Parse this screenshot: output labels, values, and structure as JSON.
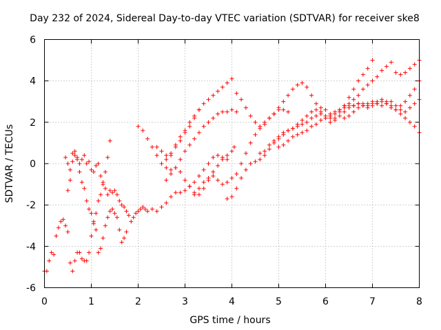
{
  "chart_data": {
    "type": "scatter",
    "title": "Day 232 of 2024, Sidereal Day-to-day VTEC variation (SDTVAR) for receiver ske8",
    "xlabel": "GPS time / hours",
    "ylabel": "SDTVAR / TECUs",
    "xlim": [
      0,
      8
    ],
    "ylim": [
      -6,
      6
    ],
    "xticks": [
      "0",
      "1",
      "2",
      "3",
      "4",
      "5",
      "6",
      "7",
      "8"
    ],
    "yticks": [
      "-6",
      "-4",
      "-2",
      "0",
      "2",
      "4",
      "6"
    ],
    "grid": true,
    "marker": "plus",
    "color": "#ff0000",
    "series": [
      {
        "x": [
          0.0,
          0.05,
          0.1,
          0.15,
          0.2,
          0.25,
          0.3,
          0.35,
          0.4,
          0.45,
          0.5,
          0.55,
          0.6,
          0.65,
          0.7,
          0.75,
          0.8,
          0.85,
          0.9,
          0.95,
          1.0,
          1.05,
          1.1,
          1.15,
          1.2,
          1.25,
          1.3,
          1.35,
          1.4
        ],
        "y": [
          -5.2,
          -5.2,
          -4.7,
          -4.3,
          -4.4,
          -3.5,
          -3.1,
          -2.8,
          -2.7,
          -3.0,
          -3.3,
          -4.8,
          -5.2,
          -4.7,
          -4.3,
          -4.3,
          -4.6,
          -4.7,
          -4.7,
          -4.3,
          -3.5,
          -2.9,
          -2.4,
          -1.8,
          -1.5,
          -1.0,
          -0.4,
          0.3,
          1.1
        ]
      },
      {
        "x": [
          0.45,
          0.5,
          0.55,
          0.6,
          0.65,
          0.7,
          0.75,
          0.8,
          0.85,
          0.9,
          0.95,
          1.0,
          1.05,
          1.1,
          1.15,
          1.2,
          1.25,
          1.3,
          1.35,
          1.4,
          1.45,
          1.5,
          1.55,
          1.6,
          1.65,
          1.7,
          1.75
        ],
        "y": [
          0.3,
          0.0,
          -0.3,
          0.5,
          0.6,
          0.2,
          -0.4,
          -0.9,
          -1.2,
          -1.8,
          -2.2,
          -2.4,
          -2.8,
          -3.2,
          -4.3,
          -4.1,
          -3.6,
          -3.0,
          -2.6,
          -2.3,
          -2.2,
          -2.4,
          -2.6,
          -3.2,
          -3.8,
          -3.6,
          -3.3
        ]
      },
      {
        "x": [
          0.5,
          0.55,
          0.6,
          0.65,
          0.7,
          0.75,
          0.8,
          0.85,
          0.9,
          0.95,
          1.0,
          1.05,
          1.1,
          1.15,
          1.2,
          1.25,
          1.3,
          1.35,
          1.4,
          1.45,
          1.5,
          1.55,
          1.6,
          1.65,
          1.7,
          1.75,
          1.8,
          1.85,
          1.9,
          1.95,
          2.0,
          2.05,
          2.1,
          2.15,
          2.2,
          2.3,
          2.4,
          2.5,
          2.6,
          2.7,
          2.8,
          2.9,
          3.0,
          3.1,
          3.2,
          3.3,
          3.4,
          3.5,
          3.6,
          3.7,
          3.8,
          3.9
        ],
        "y": [
          -1.3,
          -0.8,
          0.1,
          0.4,
          0.3,
          0.0,
          0.2,
          0.4,
          0.0,
          0.1,
          -0.3,
          -0.4,
          -0.1,
          0.0,
          -0.6,
          -0.9,
          -1.2,
          -1.5,
          -1.3,
          -1.4,
          -1.3,
          -1.5,
          -1.8,
          -2.0,
          -2.1,
          -2.3,
          -2.5,
          -2.8,
          -2.6,
          -2.4,
          -2.3,
          -2.2,
          -2.1,
          -2.2,
          -2.3,
          -2.2,
          -2.3,
          -2.1,
          -1.9,
          -1.6,
          -1.4,
          -1.4,
          -1.3,
          -1.1,
          -0.9,
          -0.6,
          -0.3,
          0.0,
          0.3,
          0.4,
          0.3,
          0.2
        ]
      },
      {
        "x": [
          2.0,
          2.1,
          2.2,
          2.3,
          2.4,
          2.5,
          2.6,
          2.7,
          2.8,
          2.9,
          3.0,
          3.1,
          3.2,
          3.3,
          3.4,
          3.5,
          3.6,
          3.7,
          3.8,
          3.9,
          4.0,
          4.05
        ],
        "y": [
          1.8,
          1.6,
          1.2,
          0.8,
          0.4,
          0.0,
          -0.2,
          -0.3,
          -0.2,
          -0.4,
          -0.8,
          -1.1,
          -1.4,
          -1.5,
          -1.2,
          -0.8,
          -0.4,
          -0.1,
          0.2,
          0.4,
          0.6,
          0.8
        ]
      },
      {
        "x": [
          2.4,
          2.5,
          2.6,
          2.7,
          2.8,
          2.9,
          3.0,
          3.1,
          3.2,
          3.3,
          3.4,
          3.5,
          3.6,
          3.7,
          3.8,
          3.9,
          4.0,
          4.1,
          4.2,
          4.3,
          4.4,
          4.5,
          4.6,
          4.7,
          4.8,
          4.9,
          5.0,
          5.1,
          5.2
        ],
        "y": [
          0.8,
          0.6,
          0.4,
          0.5,
          0.9,
          1.3,
          1.6,
          2.0,
          2.3,
          2.6,
          2.9,
          3.1,
          3.3,
          3.5,
          3.7,
          3.9,
          4.1,
          3.4,
          3.1,
          2.7,
          2.3,
          2.0,
          1.8,
          1.9,
          2.2,
          2.4,
          2.6,
          2.6,
          2.5
        ]
      },
      {
        "x": [
          2.6,
          2.7,
          2.8,
          2.9,
          3.0,
          3.1,
          3.2,
          3.3
        ],
        "y": [
          0.2,
          0.4,
          0.8,
          1.1,
          1.5,
          1.8,
          2.2,
          2.6
        ]
      },
      {
        "x": [
          2.6,
          2.7,
          2.8,
          2.9,
          3.0,
          3.1,
          3.2,
          3.3,
          3.4,
          3.5,
          3.6,
          3.7,
          3.8,
          3.9,
          4.0,
          4.1
        ],
        "y": [
          -0.8,
          -0.5,
          -0.2,
          0.2,
          0.6,
          0.9,
          1.2,
          1.5,
          1.8,
          2.0,
          2.2,
          2.4,
          2.5,
          2.5,
          2.6,
          2.5
        ]
      },
      {
        "x": [
          3.2,
          3.3,
          3.4,
          3.5,
          3.6,
          3.7,
          3.8,
          3.9,
          4.0,
          4.1,
          4.2,
          4.3,
          4.4,
          4.5,
          4.6,
          4.7,
          4.8,
          4.9,
          5.0,
          5.1,
          5.2,
          5.3,
          5.4,
          5.5,
          5.6,
          5.7,
          5.8,
          5.9,
          6.0,
          6.1,
          6.2,
          6.3,
          6.4,
          6.5,
          6.6,
          6.7,
          6.8,
          6.9,
          7.0
        ],
        "y": [
          -1.5,
          -1.2,
          -0.9,
          -0.7,
          -0.6,
          -0.8,
          -1.0,
          -0.9,
          -0.7,
          -0.5,
          0.0,
          0.5,
          1.0,
          1.4,
          1.7,
          2.0,
          2.2,
          2.4,
          2.7,
          3.0,
          3.3,
          3.6,
          3.8,
          3.9,
          3.7,
          3.3,
          2.9,
          2.5,
          2.2,
          2.0,
          2.2,
          2.5,
          2.8,
          3.2,
          3.6,
          4.0,
          4.3,
          4.6,
          5.0
        ]
      },
      {
        "x": [
          3.9,
          4.0,
          4.1,
          4.2,
          4.3,
          4.4,
          4.5,
          4.6,
          4.7,
          4.8,
          4.9,
          5.0,
          5.1,
          5.2,
          5.3,
          5.4,
          5.5,
          5.6,
          5.7,
          5.8,
          5.9,
          6.0,
          6.1,
          6.2,
          6.3,
          6.4,
          6.5,
          6.6,
          6.7,
          6.8,
          6.9,
          7.0,
          7.1,
          7.2,
          7.3,
          7.4,
          7.5,
          7.6,
          7.7,
          7.8,
          7.9,
          8.0
        ],
        "y": [
          -1.7,
          -1.6,
          -1.2,
          -0.7,
          -0.3,
          0.0,
          0.1,
          0.2,
          0.4,
          0.7,
          1.0,
          1.2,
          1.4,
          1.6,
          1.7,
          1.9,
          2.1,
          2.3,
          2.5,
          2.6,
          2.7,
          2.6,
          2.4,
          2.4,
          2.6,
          2.8,
          2.9,
          3.1,
          3.3,
          3.6,
          3.8,
          4.0,
          4.2,
          4.5,
          4.7,
          4.9,
          4.4,
          4.3,
          4.4,
          4.6,
          4.8,
          5.0
        ]
      },
      {
        "x": [
          4.6,
          4.7,
          4.8,
          4.9,
          5.0,
          5.1,
          5.2,
          5.3,
          5.4,
          5.5,
          5.6,
          5.7,
          5.8,
          5.9,
          6.0,
          6.1,
          6.2,
          6.3,
          6.4,
          6.5,
          6.6,
          6.7,
          6.8,
          6.9,
          7.0,
          7.1,
          7.2,
          7.3,
          7.4,
          7.5,
          7.6,
          7.7,
          7.8,
          7.9,
          8.0
        ],
        "y": [
          0.5,
          0.6,
          0.9,
          1.1,
          1.3,
          1.5,
          1.6,
          1.7,
          1.8,
          1.9,
          2.0,
          2.2,
          2.3,
          2.4,
          2.3,
          2.2,
          2.1,
          2.3,
          2.5,
          2.7,
          2.8,
          2.9,
          2.8,
          2.7,
          2.8,
          2.9,
          3.0,
          2.9,
          2.7,
          2.6,
          2.8,
          3.0,
          3.3,
          3.6,
          4.0
        ]
      },
      {
        "x": [
          5.0,
          5.1,
          5.2,
          5.3,
          5.4,
          5.5,
          5.6,
          5.7,
          5.8,
          5.9,
          6.0,
          6.1,
          6.2,
          6.3,
          6.4,
          6.5,
          6.6,
          6.7,
          6.8,
          6.9,
          7.0,
          7.1,
          7.2,
          7.3,
          7.4,
          7.5,
          7.6,
          7.7,
          7.8,
          7.9,
          8.0
        ],
        "y": [
          0.8,
          0.9,
          1.1,
          1.3,
          1.4,
          1.5,
          1.6,
          1.8,
          1.9,
          2.1,
          2.2,
          2.3,
          2.5,
          2.6,
          2.7,
          2.8,
          2.8,
          2.9,
          2.9,
          2.8,
          2.9,
          3.0,
          3.1,
          3.0,
          2.8,
          2.6,
          2.4,
          2.2,
          2.0,
          1.8,
          1.5
        ]
      },
      {
        "x": [
          6.4,
          6.5,
          6.6,
          6.7,
          6.8,
          6.9,
          7.0,
          7.1,
          7.2,
          7.3,
          7.4,
          7.5,
          7.6,
          7.7,
          7.8,
          7.9,
          8.0
        ],
        "y": [
          2.2,
          2.3,
          2.5,
          2.7,
          2.8,
          2.9,
          3.0,
          2.9,
          2.8,
          2.9,
          3.0,
          2.8,
          2.6,
          2.5,
          2.7,
          2.9,
          3.1
        ]
      }
    ]
  }
}
